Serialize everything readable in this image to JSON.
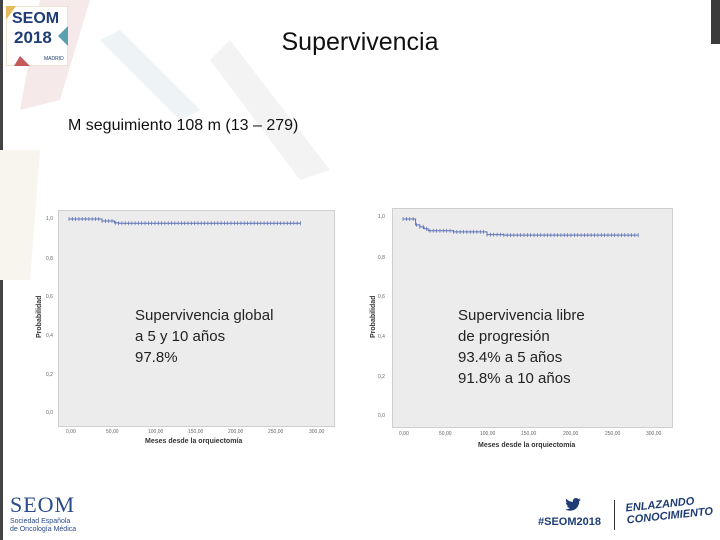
{
  "slide": {
    "title": "Supervivencia",
    "subtitle": "M seguimiento 108 m (13 – 279)"
  },
  "logo": {
    "line1": "SEOM",
    "line2": "2018",
    "line3": "MADRID"
  },
  "charts": [
    {
      "ylabel": "Probabilidad",
      "xlabel": "Meses desde la orquiectomía",
      "yticks": [
        "1,0",
        "0,8",
        "0,6",
        "0,4",
        "0,2",
        "0,0"
      ],
      "xticks": [
        "0,00",
        "50,00",
        "100,00",
        "150,00",
        "200,00",
        "250,00",
        "300,00"
      ],
      "note_lines": [
        "Supervivencia global",
        "a 5 y 10 años",
        "97.8%"
      ]
    },
    {
      "ylabel": "Probabilidad",
      "xlabel": "Meses desde la orquiectomía",
      "yticks": [
        "1,0",
        "0,8",
        "0,6",
        "0,4",
        "0,2",
        "0,0"
      ],
      "xticks": [
        "0,00",
        "50,00",
        "100,00",
        "150,00",
        "200,00",
        "250,00",
        "300,00"
      ],
      "note_lines": [
        "Supervivencia libre",
        "de progresión",
        "93.4% a 5 años",
        "91.8% a 10 años"
      ]
    }
  ],
  "chart_data": [
    {
      "type": "line",
      "title": "",
      "xlabel": "Meses desde la orquiectomía",
      "ylabel": "Probabilidad",
      "xlim": [
        0,
        300
      ],
      "ylim": [
        0,
        1
      ],
      "series": [
        {
          "x": [
            0,
            20,
            40,
            50,
            55,
            60,
            280
          ],
          "y": [
            1.0,
            1.0,
            0.99,
            0.99,
            0.98,
            0.978,
            0.978
          ]
        }
      ]
    },
    {
      "type": "line",
      "title": "",
      "xlabel": "Meses desde la orquiectomía",
      "ylabel": "Probabilidad",
      "xlim": [
        0,
        300
      ],
      "ylim": [
        0,
        1
      ],
      "series": [
        {
          "x": [
            0,
            12,
            15,
            20,
            25,
            30,
            60,
            100,
            120,
            280
          ],
          "y": [
            1.0,
            1.0,
            0.97,
            0.96,
            0.95,
            0.94,
            0.934,
            0.92,
            0.918,
            0.918
          ]
        }
      ]
    }
  ],
  "footer": {
    "seom_word": "SEOM",
    "seom_sub1": "Sociedad Española",
    "seom_sub2": "de Oncología Médica",
    "hashtag": "#SEOM2018",
    "enlazando1": "ENLAZANDO",
    "enlazando2": "CONOCIMIENTO"
  },
  "colors": {
    "curve": "#5a6fb4",
    "panel": "#ececec",
    "brand": "#1f3d74"
  }
}
